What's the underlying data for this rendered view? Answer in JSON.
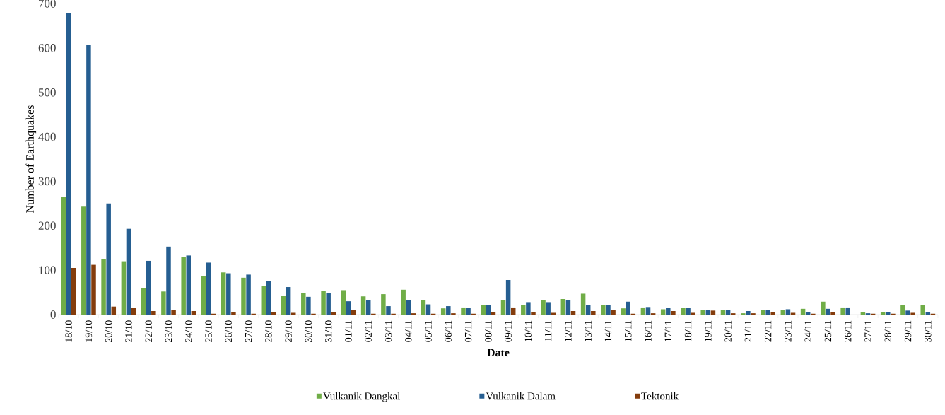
{
  "chart_data": {
    "type": "bar",
    "xlabel": "Date",
    "ylabel": "Number of Earthquakes",
    "categories": [
      "18/10",
      "19/10",
      "20/10",
      "21/10",
      "22/10",
      "23/10",
      "24/10",
      "25/10",
      "26/10",
      "27/10",
      "28/10",
      "29/10",
      "30/10",
      "31/10",
      "01/11",
      "02/11",
      "03/11",
      "04/11",
      "05/11",
      "06/11",
      "07/11",
      "08/11",
      "09/11",
      "10/11",
      "11/11",
      "12/11",
      "13/11",
      "14/11",
      "15/11",
      "16/11",
      "17/11",
      "18/11",
      "19/11",
      "20/11",
      "21/11",
      "22/11",
      "23/11",
      "24/11",
      "25/11",
      "26/11",
      "27/11",
      "28/11",
      "29/11",
      "30/11"
    ],
    "series": [
      {
        "name": "Vulkanik Dangkal",
        "color": "#70ad47",
        "values": [
          265,
          243,
          125,
          120,
          60,
          52,
          130,
          87,
          95,
          83,
          65,
          43,
          48,
          53,
          55,
          41,
          46,
          56,
          33,
          14,
          16,
          22,
          33,
          22,
          32,
          35,
          47,
          22,
          14,
          16,
          12,
          15,
          10,
          11,
          3,
          11,
          10,
          13,
          29,
          16,
          6,
          6,
          22,
          22
        ]
      },
      {
        "name": "Vulkanik Dalam",
        "color": "#255e91",
        "values": [
          678,
          606,
          250,
          193,
          121,
          153,
          133,
          117,
          93,
          90,
          75,
          62,
          40,
          49,
          30,
          33,
          19,
          33,
          23,
          19,
          15,
          22,
          78,
          28,
          28,
          33,
          21,
          22,
          29,
          17,
          15,
          15,
          10,
          11,
          8,
          10,
          12,
          5,
          13,
          16,
          3,
          5,
          9,
          5
        ]
      },
      {
        "name": "Tektonik",
        "color": "#843c0c",
        "values": [
          105,
          112,
          18,
          15,
          8,
          11,
          8,
          2,
          5,
          2,
          5,
          4,
          2,
          5,
          11,
          2,
          2,
          3,
          2,
          3,
          2,
          5,
          16,
          5,
          4,
          8,
          8,
          11,
          2,
          3,
          8,
          4,
          9,
          3,
          3,
          6,
          4,
          2,
          5,
          0,
          2,
          2,
          4,
          2
        ]
      }
    ],
    "ylim": [
      0,
      700
    ],
    "yticks": [
      0,
      100,
      200,
      300,
      400,
      500,
      600,
      700
    ],
    "grid": false,
    "legend": "bottom"
  }
}
